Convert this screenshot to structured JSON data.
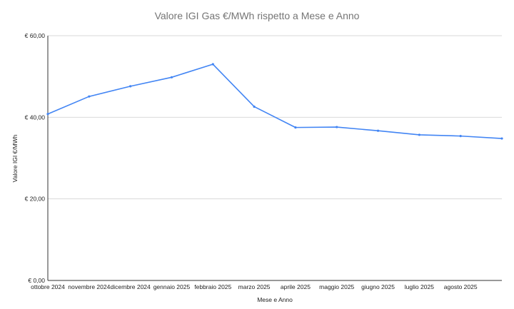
{
  "chart_data": {
    "type": "line",
    "title": "Valore IGI Gas €/MWh rispetto a Mese e Anno",
    "xlabel": "Mese e Anno",
    "ylabel": "Valore IGI €/MWh",
    "ylim": [
      0,
      60
    ],
    "yticks": [
      0,
      20,
      40,
      60
    ],
    "ytick_labels": [
      "€ 0,00",
      "€ 20,00",
      "€ 40,00",
      "€ 60,00"
    ],
    "grid": true,
    "legend": "none",
    "categories": [
      "ottobre 2024",
      "novembre 2024",
      "dicembre 2024",
      "gennaio 2025",
      "febbraio 2025",
      "marzo 2025",
      "aprile 2025",
      "maggio 2025",
      "giugno 2025",
      "luglio 2025",
      "agosto 2025",
      ""
    ],
    "series": [
      {
        "name": "Valore IGI €/MWh",
        "color": "#4285f4",
        "values": [
          40.8,
          45.1,
          47.6,
          49.8,
          53.0,
          42.6,
          37.5,
          37.6,
          36.7,
          35.7,
          35.4,
          34.8
        ]
      }
    ]
  }
}
